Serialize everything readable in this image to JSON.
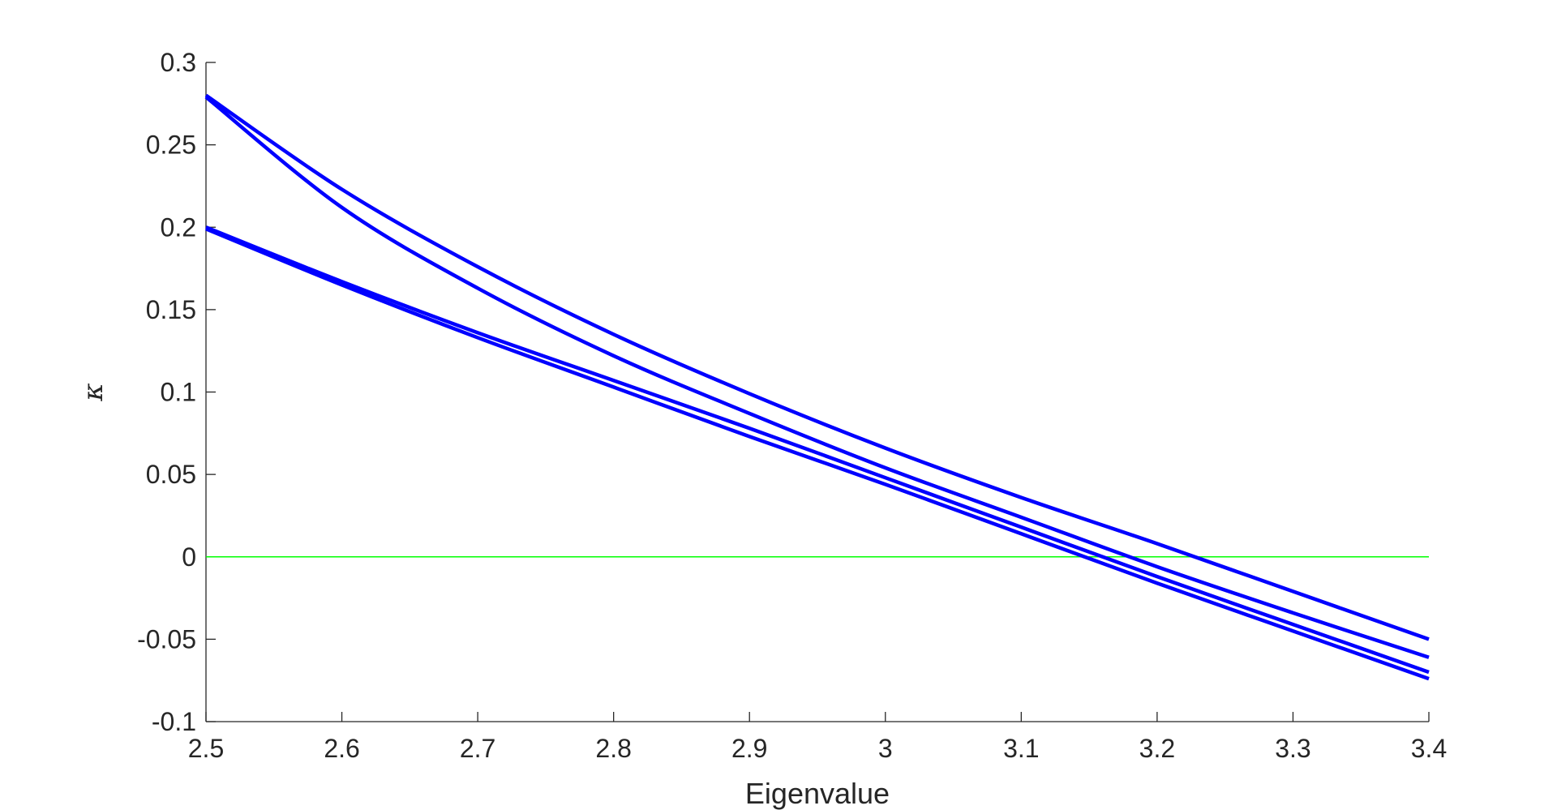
{
  "chart_data": {
    "type": "line",
    "title": "",
    "xlabel": "Eigenvalue",
    "ylabel": "κ",
    "xlim": [
      2.5,
      3.4
    ],
    "ylim": [
      -0.1,
      0.3
    ],
    "xticks": [
      2.5,
      2.6,
      2.7,
      2.8,
      2.9,
      3.0,
      3.1,
      3.2,
      3.3,
      3.4
    ],
    "xtick_labels": [
      "2.5",
      "2.6",
      "2.7",
      "2.8",
      "2.9",
      "3",
      "3.1",
      "3.2",
      "3.3",
      "3.4"
    ],
    "yticks": [
      -0.1,
      -0.05,
      0,
      0.05,
      0.1,
      0.15,
      0.2,
      0.25,
      0.3
    ],
    "ytick_labels": [
      "-0.1",
      "-0.05",
      "0",
      "0.05",
      "0.1",
      "0.15",
      "0.2",
      "0.25",
      "0.3"
    ],
    "grid": false,
    "legend": "none",
    "series": [
      {
        "color": "#0000ff",
        "x": [
          2.5,
          2.6,
          2.7,
          2.8,
          2.9,
          3.0,
          3.1,
          3.2,
          3.3,
          3.4
        ],
        "y": [
          0.28,
          0.223,
          0.176,
          0.135,
          0.099,
          0.066,
          0.036,
          0.008,
          -0.021,
          -0.05
        ]
      },
      {
        "color": "#0000ff",
        "x": [
          2.5,
          2.6,
          2.7,
          2.8,
          2.9,
          3.0,
          3.1,
          3.2,
          3.3,
          3.4
        ],
        "y": [
          0.279,
          0.212,
          0.163,
          0.122,
          0.087,
          0.054,
          0.024,
          -0.006,
          -0.034,
          -0.061
        ]
      },
      {
        "color": "#0000ff",
        "x": [
          2.5,
          2.6,
          2.7,
          2.8,
          2.9,
          3.0,
          3.1,
          3.2,
          3.3,
          3.4
        ],
        "y": [
          0.2,
          0.167,
          0.136,
          0.107,
          0.078,
          0.048,
          0.018,
          -0.012,
          -0.041,
          -0.07
        ]
      },
      {
        "color": "#0000ff",
        "x": [
          2.5,
          2.6,
          2.7,
          2.8,
          2.9,
          3.0,
          3.1,
          3.2,
          3.3,
          3.4
        ],
        "y": [
          0.199,
          0.165,
          0.133,
          0.103,
          0.073,
          0.044,
          0.014,
          -0.016,
          -0.045,
          -0.074
        ]
      }
    ],
    "reference_lines": [
      {
        "y": 0,
        "color": "#00ff00"
      }
    ]
  }
}
